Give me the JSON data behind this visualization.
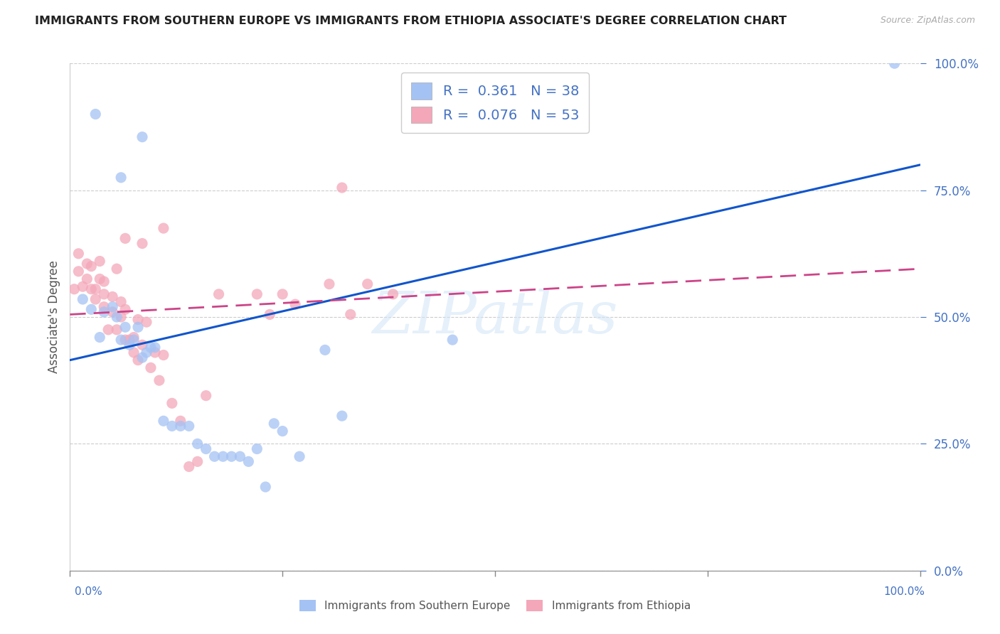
{
  "title": "IMMIGRANTS FROM SOUTHERN EUROPE VS IMMIGRANTS FROM ETHIOPIA ASSOCIATE'S DEGREE CORRELATION CHART",
  "source": "Source: ZipAtlas.com",
  "ylabel": "Associate's Degree",
  "ytick_labels": [
    "0.0%",
    "25.0%",
    "50.0%",
    "75.0%",
    "100.0%"
  ],
  "ytick_values": [
    0.0,
    0.25,
    0.5,
    0.75,
    1.0
  ],
  "xlim": [
    0.0,
    1.0
  ],
  "ylim": [
    0.0,
    1.0
  ],
  "blue_color": "#a4c2f4",
  "pink_color": "#f4a7b9",
  "blue_line_color": "#1155cc",
  "pink_line_color": "#cc4488",
  "blue_scatter": {
    "x": [
      0.015,
      0.025,
      0.035,
      0.04,
      0.05,
      0.055,
      0.06,
      0.065,
      0.07,
      0.075,
      0.08,
      0.085,
      0.09,
      0.095,
      0.1,
      0.11,
      0.12,
      0.13,
      0.14,
      0.15,
      0.16,
      0.17,
      0.18,
      0.19,
      0.2,
      0.21,
      0.22,
      0.23,
      0.24,
      0.25,
      0.27,
      0.3,
      0.32,
      0.45,
      0.97,
      0.06,
      0.085,
      0.03
    ],
    "y": [
      0.535,
      0.515,
      0.46,
      0.51,
      0.52,
      0.5,
      0.455,
      0.48,
      0.445,
      0.455,
      0.48,
      0.42,
      0.43,
      0.44,
      0.44,
      0.295,
      0.285,
      0.285,
      0.285,
      0.25,
      0.24,
      0.225,
      0.225,
      0.225,
      0.225,
      0.215,
      0.24,
      0.165,
      0.29,
      0.275,
      0.225,
      0.435,
      0.305,
      0.455,
      1.0,
      0.775,
      0.855,
      0.9
    ]
  },
  "pink_scatter": {
    "x": [
      0.005,
      0.01,
      0.01,
      0.015,
      0.02,
      0.02,
      0.025,
      0.025,
      0.03,
      0.03,
      0.035,
      0.035,
      0.04,
      0.04,
      0.04,
      0.045,
      0.05,
      0.05,
      0.055,
      0.055,
      0.06,
      0.06,
      0.065,
      0.065,
      0.07,
      0.075,
      0.075,
      0.08,
      0.08,
      0.085,
      0.09,
      0.095,
      0.1,
      0.105,
      0.11,
      0.12,
      0.13,
      0.14,
      0.15,
      0.16,
      0.175,
      0.22,
      0.235,
      0.25,
      0.265,
      0.305,
      0.33,
      0.35,
      0.38,
      0.065,
      0.085,
      0.11,
      0.32
    ],
    "y": [
      0.555,
      0.59,
      0.625,
      0.56,
      0.575,
      0.605,
      0.555,
      0.6,
      0.535,
      0.555,
      0.575,
      0.61,
      0.52,
      0.545,
      0.57,
      0.475,
      0.51,
      0.54,
      0.595,
      0.475,
      0.5,
      0.53,
      0.455,
      0.515,
      0.455,
      0.43,
      0.46,
      0.495,
      0.415,
      0.445,
      0.49,
      0.4,
      0.43,
      0.375,
      0.425,
      0.33,
      0.295,
      0.205,
      0.215,
      0.345,
      0.545,
      0.545,
      0.505,
      0.545,
      0.525,
      0.565,
      0.505,
      0.565,
      0.545,
      0.655,
      0.645,
      0.675,
      0.755
    ]
  },
  "blue_line": {
    "x0": 0.0,
    "y0": 0.415,
    "x1": 1.0,
    "y1": 0.8
  },
  "pink_line": {
    "x0": 0.0,
    "y0": 0.505,
    "x1": 1.0,
    "y1": 0.595
  },
  "watermark": "ZIPatlas",
  "background_color": "#ffffff"
}
